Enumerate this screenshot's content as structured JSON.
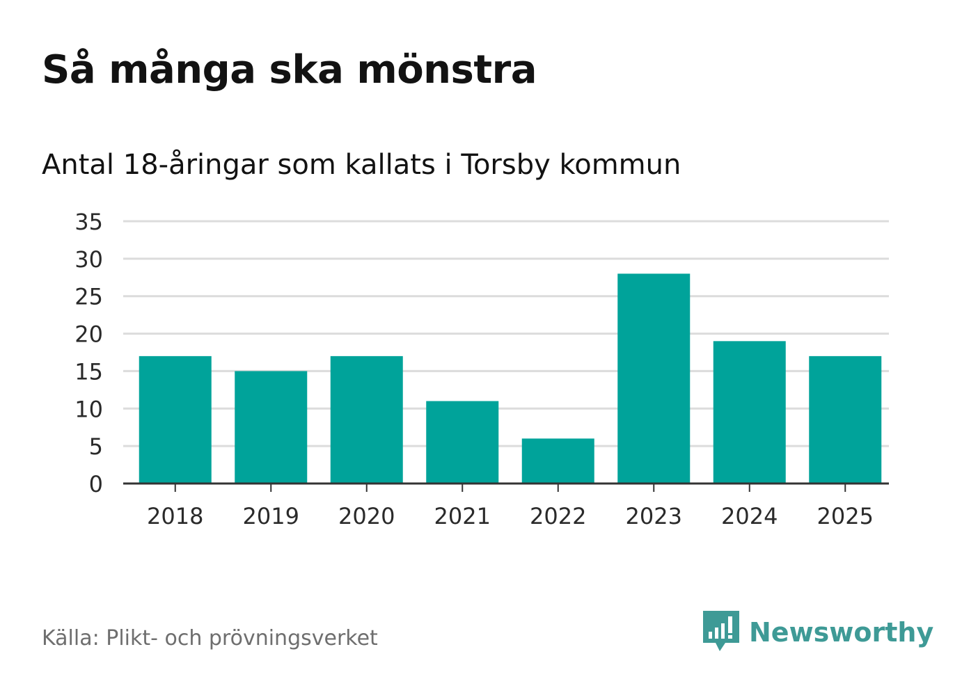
{
  "header": {
    "title": "Så många ska mönstra",
    "subtitle": "Antal 18-åringar som kallats i Torsby kommun"
  },
  "footer": {
    "source": "Källa: Plikt- och prövningsverket",
    "brand": "Newsworthy",
    "brand_icon": "newsworthy-logo-icon",
    "brand_color": "#3e9a96"
  },
  "chart_data": {
    "type": "bar",
    "categories": [
      "2018",
      "2019",
      "2020",
      "2021",
      "2022",
      "2023",
      "2024",
      "2025"
    ],
    "values": [
      17,
      15,
      17,
      11,
      6,
      28,
      19,
      17
    ],
    "ylim": [
      0,
      35
    ],
    "yticks": [
      "0",
      "5",
      "10",
      "15",
      "20",
      "25",
      "30",
      "35"
    ],
    "grid": true,
    "bar_color": "#00a39a"
  }
}
